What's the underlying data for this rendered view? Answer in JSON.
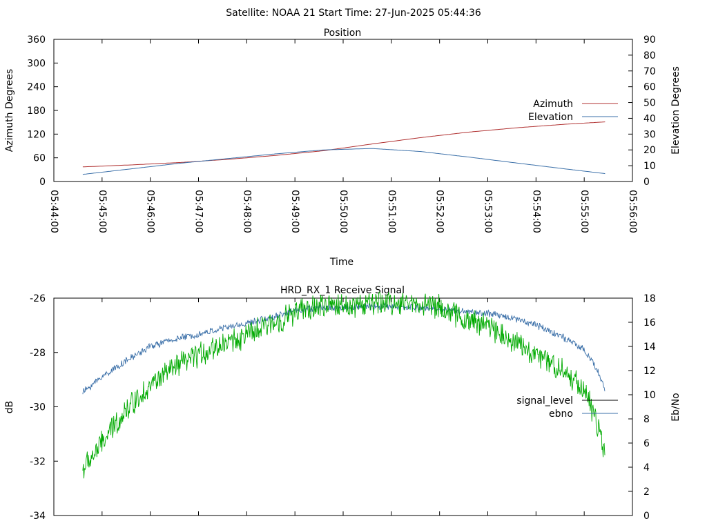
{
  "header": {
    "title": "Satellite: NOAA 21    Start Time: 27-Jun-2025 05:44:36"
  },
  "chart_data": [
    {
      "type": "line",
      "title": "Position",
      "xlabel": "Time",
      "ylabel_left": "Azimuth Degrees",
      "ylabel_right": "Elevation Degrees",
      "x_ticks": [
        "05:44:00",
        "05:45:00",
        "05:46:00",
        "05:47:00",
        "05:48:00",
        "05:49:00",
        "05:50:00",
        "05:51:00",
        "05:52:00",
        "05:53:00",
        "05:54:00",
        "05:55:00",
        "05:56:00"
      ],
      "xlim": [
        "05:44:00",
        "05:56:00"
      ],
      "ylim_left": [
        0,
        360
      ],
      "ylim_right": [
        0,
        90
      ],
      "yticks_left": [
        0,
        60,
        120,
        180,
        240,
        300,
        360
      ],
      "yticks_right": [
        0,
        10,
        20,
        30,
        40,
        50,
        60,
        70,
        80,
        90
      ],
      "grid": false,
      "legend_position": "right",
      "series": [
        {
          "name": "Azimuth",
          "axis": "left",
          "color": "#b03030",
          "x": [
            "05:44:36",
            "05:45:36",
            "05:46:36",
            "05:47:36",
            "05:48:36",
            "05:49:36",
            "05:50:36",
            "05:51:36",
            "05:52:36",
            "05:53:36",
            "05:54:36",
            "05:55:26"
          ],
          "y": [
            37,
            42,
            48,
            56,
            66,
            78,
            95,
            111,
            125,
            136,
            145,
            151
          ]
        },
        {
          "name": "Elevation",
          "axis": "right",
          "color": "#3a6fa8",
          "x": [
            "05:44:36",
            "05:45:36",
            "05:46:36",
            "05:47:36",
            "05:48:36",
            "05:49:36",
            "05:50:36",
            "05:51:36",
            "05:52:36",
            "05:53:36",
            "05:54:36",
            "05:55:26"
          ],
          "y": [
            4.5,
            8,
            11.5,
            14.5,
            17.5,
            20,
            20.9,
            19,
            15.5,
            11.7,
            8,
            5
          ]
        }
      ]
    },
    {
      "type": "line",
      "title": "HRD_RX_1 Receive Signal",
      "ylabel_left": "dB",
      "ylabel_right": "Eb/No",
      "xlim": [
        "05:44:00",
        "05:56:00"
      ],
      "ylim_left": [
        -34,
        -26
      ],
      "ylim_right": [
        0,
        18
      ],
      "yticks_left": [
        -34,
        -32,
        -30,
        -28,
        -26
      ],
      "yticks_right": [
        0,
        2,
        4,
        6,
        8,
        10,
        12,
        14,
        16,
        18
      ],
      "grid": false,
      "legend_position": "right",
      "series": [
        {
          "name": "signal_level",
          "axis": "left",
          "color": "#000000",
          "legend_only": true,
          "x": [],
          "y": []
        },
        {
          "name": "ebno",
          "axis": "right",
          "color": "#3a6fa8",
          "x": [
            "05:44:36",
            "05:45:00",
            "05:45:30",
            "05:46:00",
            "05:46:30",
            "05:47:00",
            "05:47:30",
            "05:48:00",
            "05:48:30",
            "05:49:00",
            "05:49:30",
            "05:50:00",
            "05:50:30",
            "05:51:00",
            "05:51:30",
            "05:52:00",
            "05:52:30",
            "05:53:00",
            "05:53:30",
            "05:54:00",
            "05:54:30",
            "05:55:00",
            "05:55:15",
            "05:55:26"
          ],
          "y": [
            10.2,
            11.5,
            12.8,
            14.0,
            14.6,
            15.0,
            15.5,
            15.9,
            16.4,
            17.0,
            17.2,
            17.2,
            17.3,
            17.3,
            17.2,
            17.1,
            16.9,
            16.7,
            16.4,
            15.8,
            14.9,
            13.7,
            12.2,
            10.5
          ]
        },
        {
          "name": "",
          "axis": "right",
          "color": "#00aa00",
          "x": [
            "05:44:36",
            "05:45:00",
            "05:45:30",
            "05:46:00",
            "05:46:30",
            "05:47:00",
            "05:47:30",
            "05:48:00",
            "05:48:30",
            "05:49:00",
            "05:49:30",
            "05:50:00",
            "05:50:30",
            "05:51:00",
            "05:51:30",
            "05:52:00",
            "05:52:30",
            "05:53:00",
            "05:53:30",
            "05:54:00",
            "05:54:30",
            "05:55:00",
            "05:55:15",
            "05:55:26"
          ],
          "y": [
            3.8,
            6.0,
            8.8,
            10.8,
            12.2,
            13.3,
            14.2,
            14.9,
            15.8,
            16.8,
            17.3,
            17.4,
            17.5,
            17.6,
            17.6,
            17.3,
            16.2,
            15.8,
            14.5,
            13.3,
            12.2,
            10.5,
            7.8,
            5.0
          ]
        }
      ]
    }
  ]
}
